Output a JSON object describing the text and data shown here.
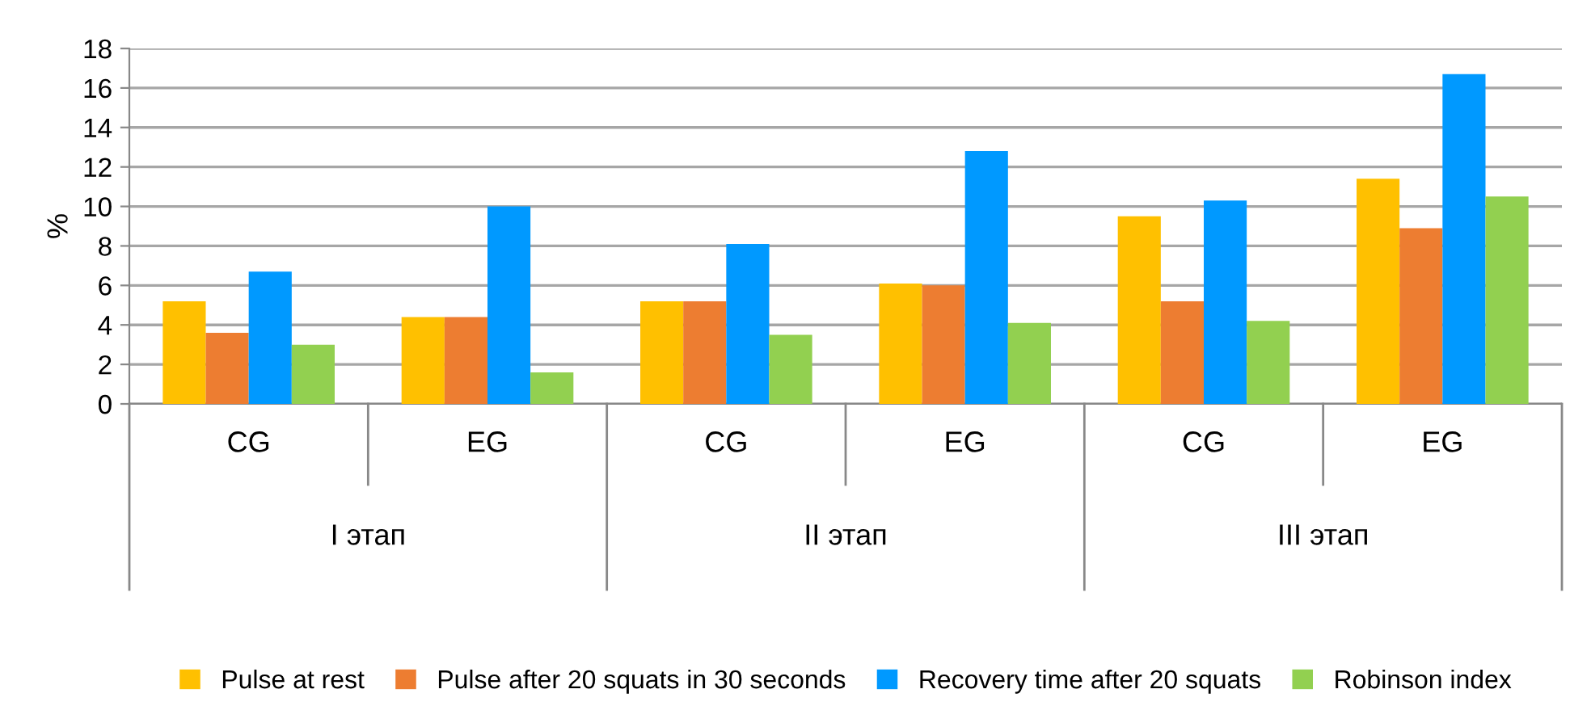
{
  "chart_data": {
    "type": "bar",
    "ylabel": "%",
    "categories": [
      "CG",
      "EG",
      "CG",
      "EG",
      "CG",
      "EG"
    ],
    "series": [
      {
        "name": "Pulse at rest",
        "color": "#ffc000",
        "values": [
          5.2,
          4.4,
          5.2,
          6.1,
          9.5,
          11.4
        ]
      },
      {
        "name": "Pulse after 20 squats in 30 seconds",
        "color": "#ed7d31",
        "values": [
          3.6,
          4.4,
          5.2,
          6.0,
          5.2,
          8.9
        ]
      },
      {
        "name": "Recovery time after 20 squats",
        "color": "#0099ff",
        "values": [
          6.7,
          10.0,
          8.1,
          12.8,
          10.3,
          16.7
        ]
      },
      {
        "name": "Robinson index",
        "color": "#92d050",
        "values": [
          3.0,
          1.6,
          3.5,
          4.1,
          4.2,
          10.5
        ]
      }
    ],
    "annotations": [
      "I этап",
      "II этап",
      "III этап"
    ],
    "ylim": [
      0,
      18
    ],
    "yticks": [
      0,
      2,
      4,
      6,
      8,
      10,
      12,
      14,
      16,
      18
    ],
    "grid": "y",
    "legend": "bottom"
  }
}
